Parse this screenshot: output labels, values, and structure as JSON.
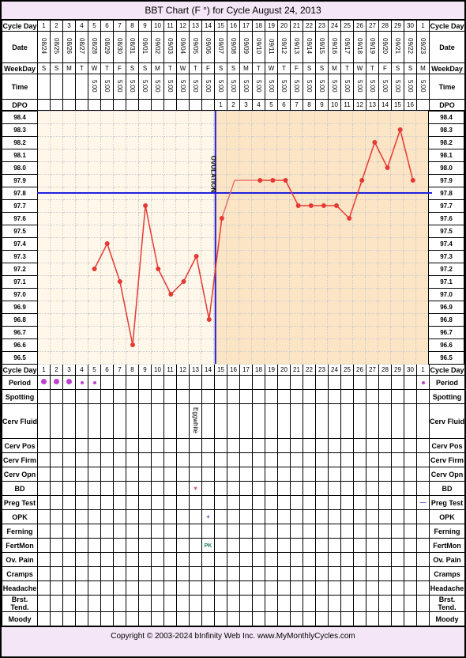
{
  "title": "BBT Chart (F °) for Cycle August 24, 2013",
  "labels": {
    "cycleday": "Cycle Day",
    "date": "Date",
    "weekday": "WeekDay",
    "time": "Time",
    "dpo": "DPO",
    "period": "Period",
    "spotting": "Spotting",
    "cervfluid": "Cerv Fluid",
    "cervpos": "Cerv Pos",
    "cervfirm": "Cerv Firm",
    "cervopn": "Cerv Opn",
    "bd": "BD",
    "pregtest": "Preg Test",
    "opk": "OPK",
    "ferning": "Ferning",
    "fertmon": "FertMon",
    "ovpain": "Ov. Pain",
    "cramps": "Cramps",
    "headache": "Headache",
    "brsttend": "Brst. Tend.",
    "moody": "Moody",
    "ovulation": "OVULATION",
    "eggwhite": "Eggwhite"
  },
  "cycledays": [
    1,
    2,
    3,
    4,
    5,
    6,
    7,
    8,
    9,
    10,
    11,
    12,
    13,
    14,
    15,
    16,
    17,
    18,
    19,
    20,
    21,
    22,
    23,
    24,
    25,
    26,
    27,
    28,
    29,
    30,
    1
  ],
  "dates": [
    "08/24",
    "08/25",
    "08/26",
    "08/27",
    "08/28",
    "08/29",
    "08/30",
    "08/31",
    "09/01",
    "09/02",
    "09/03",
    "09/04",
    "09/05",
    "09/06",
    "09/07",
    "09/08",
    "09/09",
    "09/10",
    "09/11",
    "09/12",
    "09/13",
    "09/14",
    "09/15",
    "09/16",
    "09/17",
    "09/18",
    "09/19",
    "09/20",
    "09/21",
    "09/22",
    "09/23"
  ],
  "weekdays": [
    "S",
    "S",
    "M",
    "T",
    "W",
    "T",
    "F",
    "S",
    "S",
    "M",
    "T",
    "W",
    "T",
    "F",
    "S",
    "S",
    "M",
    "T",
    "W",
    "T",
    "F",
    "S",
    "S",
    "M",
    "T",
    "W",
    "T",
    "F",
    "S",
    "S",
    "M"
  ],
  "times": [
    "",
    "",
    "",
    "",
    "5:00",
    "5:00",
    "5:00",
    "5:00",
    "5:00",
    "5:00",
    "5:00",
    "5:00",
    "5:00",
    "5:00",
    "5:00",
    "5:00",
    "5:00",
    "5:00",
    "5:00",
    "5:00",
    "5:00",
    "5:00",
    "5:00",
    "5:00",
    "5:00",
    "5:00",
    "5:00",
    "5:00",
    "5:00",
    "5:00",
    "5:00"
  ],
  "dpo": [
    "",
    "",
    "",
    "",
    "",
    "",
    "",
    "",
    "",
    "",
    "",
    "",
    "",
    "",
    1,
    2,
    3,
    4,
    5,
    6,
    7,
    8,
    9,
    10,
    11,
    12,
    13,
    14,
    15,
    16,
    ""
  ],
  "temp_labels": [
    "98.4",
    "98.3",
    "98.2",
    "98.1",
    "98.0",
    "97.9",
    "97.8",
    "97.7",
    "97.6",
    "97.5",
    "97.4",
    "97.3",
    "97.2",
    "97.1",
    "97.0",
    "96.9",
    "96.8",
    "96.7",
    "96.6",
    "96.5"
  ],
  "temps": [
    null,
    null,
    null,
    null,
    97.2,
    97.4,
    97.1,
    96.6,
    97.7,
    97.2,
    97.0,
    97.1,
    97.3,
    96.8,
    97.6,
    97.9,
    97.9,
    97.9,
    97.9,
    97.9,
    97.7,
    97.7,
    97.7,
    97.7,
    97.6,
    97.9,
    98.2,
    98.0,
    98.3,
    97.9,
    null
  ],
  "missing_days": [
    16,
    17
  ],
  "ovulation_day": 14,
  "coverline": 97.8,
  "chart": {
    "ylim": [
      96.5,
      98.4
    ],
    "n_days": 31,
    "line_color": "#e53935",
    "point_color": "#e53935",
    "point_radius": 3,
    "coverline_color": "#2020e0",
    "ovul_color": "#2020e0",
    "grid_bg_follicular": "#fff8ea",
    "grid_bg_luteal": "#fce5c5",
    "dash_color": "#e57373"
  },
  "period_dots": {
    "days": [
      1,
      2,
      3,
      4,
      5,
      31
    ],
    "color": "#c040d0",
    "big": [
      1,
      2,
      3
    ],
    "small": [
      4,
      5,
      31
    ]
  },
  "cervfluid": {
    "day": 13,
    "value": "Eggwhite"
  },
  "bd": {
    "day": 13,
    "symbol": "♥",
    "color": "#e06080"
  },
  "pregtest": {
    "day": 31,
    "symbol": "—",
    "color": "#5050c0"
  },
  "opk": {
    "day": 14,
    "symbol": "+",
    "color": "#5050c0"
  },
  "fertmon": {
    "day": 14,
    "value": "PK",
    "color": "#208050"
  },
  "footer": "Copyright © 2003-2024 bInfinity Web Inc.    www.MyMonthlyCycles.com"
}
